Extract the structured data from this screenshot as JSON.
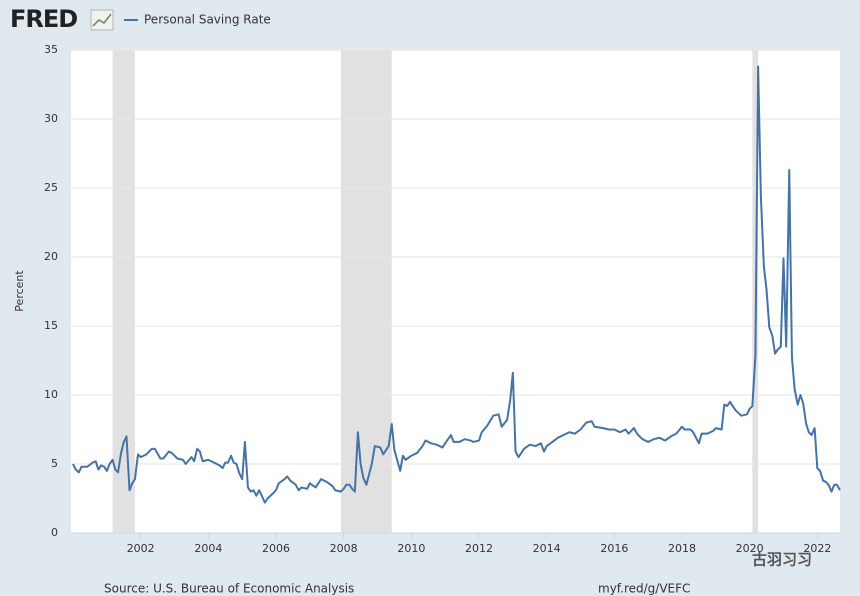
{
  "chart_data": {
    "type": "line",
    "brand": "FRED",
    "y_label": "Percent",
    "source": "Source: U.S. Bureau of Economic Analysis",
    "link": "myf.red/g/VEFC",
    "watermark": "古羽习习",
    "xlim": [
      1999.94,
      2022.67
    ],
    "xticks": [
      2002,
      2004,
      2006,
      2008,
      2010,
      2012,
      2014,
      2016,
      2018,
      2020,
      2022
    ],
    "ylim": [
      0,
      35
    ],
    "yticks": [
      0,
      5,
      10,
      15,
      20,
      25,
      30,
      35
    ],
    "grid": true,
    "recession_color": "#e1e1e1",
    "recessions": [
      [
        2001.17,
        2001.83
      ],
      [
        2007.92,
        2009.42
      ],
      [
        2020.08,
        2020.25
      ]
    ],
    "x": [
      2000.0,
      2000.08,
      2000.17,
      2000.25,
      2000.42,
      2000.58,
      2000.67,
      2000.75,
      2000.83,
      2000.92,
      2001.0,
      2001.08,
      2001.17,
      2001.25,
      2001.33,
      2001.42,
      2001.5,
      2001.58,
      2001.67,
      2001.75,
      2001.83,
      2001.92,
      2002.0,
      2002.17,
      2002.33,
      2002.42,
      2002.58,
      2002.67,
      2002.83,
      2002.92,
      2003.08,
      2003.25,
      2003.33,
      2003.5,
      2003.58,
      2003.67,
      2003.75,
      2003.83,
      2004.0,
      2004.17,
      2004.33,
      2004.42,
      2004.5,
      2004.58,
      2004.67,
      2004.75,
      2004.83,
      2004.92,
      2005.0,
      2005.08,
      2005.17,
      2005.25,
      2005.33,
      2005.42,
      2005.5,
      2005.58,
      2005.67,
      2005.75,
      2005.92,
      2006.0,
      2006.08,
      2006.25,
      2006.33,
      2006.42,
      2006.58,
      2006.67,
      2006.75,
      2006.92,
      2007.0,
      2007.17,
      2007.33,
      2007.5,
      2007.67,
      2007.75,
      2007.92,
      2008.0,
      2008.08,
      2008.17,
      2008.25,
      2008.33,
      2008.42,
      2008.5,
      2008.58,
      2008.67,
      2008.83,
      2008.92,
      2009.08,
      2009.17,
      2009.33,
      2009.42,
      2009.5,
      2009.58,
      2009.67,
      2009.75,
      2009.83,
      2010.0,
      2010.17,
      2010.33,
      2010.42,
      2010.58,
      2010.75,
      2010.92,
      2011.0,
      2011.17,
      2011.25,
      2011.42,
      2011.58,
      2011.75,
      2011.83,
      2012.0,
      2012.08,
      2012.25,
      2012.42,
      2012.58,
      2012.67,
      2012.83,
      2012.92,
      2013.0,
      2013.08,
      2013.17,
      2013.33,
      2013.5,
      2013.67,
      2013.83,
      2013.92,
      2014.0,
      2014.17,
      2014.33,
      2014.5,
      2014.67,
      2014.83,
      2015.0,
      2015.17,
      2015.33,
      2015.42,
      2015.67,
      2015.83,
      2016.0,
      2016.17,
      2016.33,
      2016.42,
      2016.58,
      2016.67,
      2016.83,
      2017.0,
      2017.17,
      2017.33,
      2017.5,
      2017.67,
      2017.83,
      2018.0,
      2018.08,
      2018.25,
      2018.33,
      2018.5,
      2018.58,
      2018.75,
      2018.92,
      2019.0,
      2019.17,
      2019.25,
      2019.33,
      2019.42,
      2019.58,
      2019.75,
      2019.92,
      2020.0,
      2020.08,
      2020.17,
      2020.25,
      2020.33,
      2020.42,
      2020.5,
      2020.58,
      2020.67,
      2020.75,
      2020.83,
      2020.92,
      2021.0,
      2021.08,
      2021.17,
      2021.25,
      2021.33,
      2021.42,
      2021.5,
      2021.58,
      2021.67,
      2021.75,
      2021.83,
      2021.92,
      2022.0,
      2022.08,
      2022.17,
      2022.25,
      2022.33,
      2022.42,
      2022.5,
      2022.58,
      2022.67
    ],
    "series": [
      {
        "name": "Personal Saving Rate",
        "color": "#4572a7",
        "values": [
          5.0,
          4.6,
          4.4,
          4.8,
          4.8,
          5.1,
          5.2,
          4.6,
          4.9,
          4.8,
          4.5,
          5.0,
          5.3,
          4.6,
          4.4,
          5.8,
          6.6,
          7.0,
          3.1,
          3.6,
          3.9,
          5.7,
          5.5,
          5.7,
          6.1,
          6.1,
          5.4,
          5.4,
          5.9,
          5.8,
          5.4,
          5.3,
          5.0,
          5.5,
          5.2,
          6.1,
          5.9,
          5.2,
          5.3,
          5.1,
          4.9,
          4.7,
          5.1,
          5.1,
          5.6,
          5.1,
          5.0,
          4.3,
          3.9,
          6.6,
          3.3,
          3.0,
          3.1,
          2.7,
          3.1,
          2.7,
          2.2,
          2.5,
          2.9,
          3.1,
          3.6,
          3.9,
          4.1,
          3.8,
          3.5,
          3.1,
          3.3,
          3.2,
          3.6,
          3.3,
          3.9,
          3.7,
          3.4,
          3.1,
          3.0,
          3.2,
          3.5,
          3.5,
          3.2,
          3.0,
          7.3,
          5.0,
          4.0,
          3.5,
          5.0,
          6.3,
          6.2,
          5.7,
          6.3,
          7.9,
          6.0,
          5.3,
          4.5,
          5.6,
          5.3,
          5.6,
          5.8,
          6.3,
          6.7,
          6.5,
          6.4,
          6.2,
          6.5,
          7.1,
          6.6,
          6.6,
          6.8,
          6.7,
          6.6,
          6.7,
          7.3,
          7.8,
          8.5,
          8.6,
          7.7,
          8.2,
          9.6,
          11.6,
          5.9,
          5.5,
          6.1,
          6.4,
          6.3,
          6.5,
          5.9,
          6.3,
          6.6,
          6.9,
          7.1,
          7.3,
          7.2,
          7.5,
          8.0,
          8.1,
          7.7,
          7.6,
          7.5,
          7.5,
          7.3,
          7.5,
          7.2,
          7.6,
          7.2,
          6.8,
          6.6,
          6.8,
          6.9,
          6.7,
          7.0,
          7.2,
          7.7,
          7.5,
          7.5,
          7.3,
          6.5,
          7.2,
          7.2,
          7.4,
          7.6,
          7.5,
          9.3,
          9.2,
          9.5,
          8.9,
          8.5,
          8.6,
          9.0,
          9.2,
          12.9,
          33.8,
          24.5,
          19.3,
          17.6,
          14.9,
          14.3,
          13.0,
          13.3,
          13.5,
          19.9,
          13.5,
          26.3,
          12.7,
          10.4,
          9.3,
          10.0,
          9.4,
          7.9,
          7.3,
          7.1,
          7.6,
          4.7,
          4.5,
          3.8,
          3.7,
          3.5,
          3.0,
          3.5,
          3.5,
          3.1
        ]
      }
    ]
  }
}
